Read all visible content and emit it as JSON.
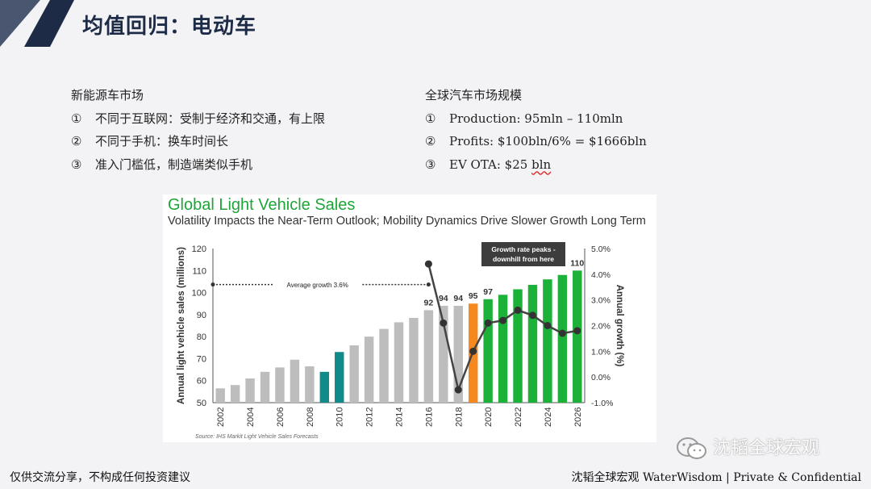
{
  "slide": {
    "title": "均值回归：电动车"
  },
  "left": {
    "heading": "新能源车市场",
    "items": [
      {
        "num": "①",
        "text": "不同于互联网：受制于经济和交通，有上限"
      },
      {
        "num": "②",
        "text": "不同于手机：换车时间长"
      },
      {
        "num": "③",
        "text": "准入门槛低，制造端类似手机"
      }
    ]
  },
  "right": {
    "heading": "全球汽车市场规模",
    "items": [
      {
        "num": "①",
        "text": "Production: 95mln – 110mln"
      },
      {
        "num": "②",
        "text": "Profits: $100bln/6% = $1666bln"
      },
      {
        "num": "③",
        "text_prefix": "EV OTA: $25 ",
        "text_squiggle": "bln"
      }
    ]
  },
  "chart_data": {
    "type": "bar",
    "title": "Global Light Vehicle Sales",
    "subtitle": "Volatility Impacts the Near-Term Outlook; Mobility Dynamics Drive Slower Growth Long Term",
    "ylabel": "Annual light vehicle sales (millions)",
    "y2label": "Annual growth (%)",
    "ylim": [
      50,
      120
    ],
    "yticks": [
      "50",
      "60",
      "70",
      "80",
      "90",
      "100",
      "110",
      "120"
    ],
    "y2lim": [
      -1.0,
      5.0
    ],
    "y2ticks": [
      "-1.0%",
      "0.0%",
      "1.0%",
      "2.0%",
      "3.0%",
      "4.0%",
      "5.0%"
    ],
    "x": [
      2002,
      2003,
      2004,
      2005,
      2006,
      2007,
      2008,
      2009,
      2010,
      2011,
      2012,
      2013,
      2014,
      2015,
      2016,
      2017,
      2018,
      2019,
      2020,
      2021,
      2022,
      2023,
      2024,
      2025,
      2026
    ],
    "xtick_labels": [
      "2002",
      "2004",
      "2006",
      "2008",
      "2010",
      "2012",
      "2014",
      "2016",
      "2018",
      "2020",
      "2022",
      "2024",
      "2026"
    ],
    "values": [
      56.5,
      58,
      61,
      64,
      66,
      69.5,
      66.5,
      64,
      73,
      76,
      80,
      83.5,
      86.5,
      88.5,
      92,
      94,
      94,
      95,
      97,
      99,
      101.5,
      103.5,
      106,
      108,
      110
    ],
    "bar_colors": {
      "historical": "#bdbdbd",
      "highlight": "#118a8a",
      "current": "#f5891f",
      "forecast": "#1cb23a"
    },
    "highlight_years": [
      2009,
      2010
    ],
    "current_year": 2019,
    "forecast_from": 2020,
    "data_labels": [
      {
        "x": 2016,
        "label": "92"
      },
      {
        "x": 2017,
        "label": "94"
      },
      {
        "x": 2018,
        "label": "94"
      },
      {
        "x": 2019,
        "label": "95"
      },
      {
        "x": 2020,
        "label": "97"
      },
      {
        "x": 2026,
        "label": "110"
      }
    ],
    "growth_series": {
      "name": "Annual growth",
      "x": [
        2016,
        2017,
        2018,
        2019,
        2020,
        2021,
        2022,
        2023,
        2024,
        2025,
        2026
      ],
      "values": [
        4.4,
        2.1,
        -0.5,
        1.0,
        2.1,
        2.2,
        2.6,
        2.4,
        2.0,
        1.7,
        1.8
      ]
    },
    "average_line": {
      "value": 3.6,
      "from": 2002,
      "to": 2016,
      "label": "Average growth 3.6%"
    },
    "callout": "Growth rate peaks - downhill from here",
    "source": "Source: IHS Markit Light Vehicle Sales Forecasts"
  },
  "footer": {
    "left": "仅供交流分享，不构成任何投资建议",
    "right": "沈韬全球宏观 WaterWisdom | Private & Confidential",
    "watermark": "沈韬全球宏观"
  },
  "colors": {
    "navy": "#1e2b47",
    "slate": "#4a5670"
  }
}
